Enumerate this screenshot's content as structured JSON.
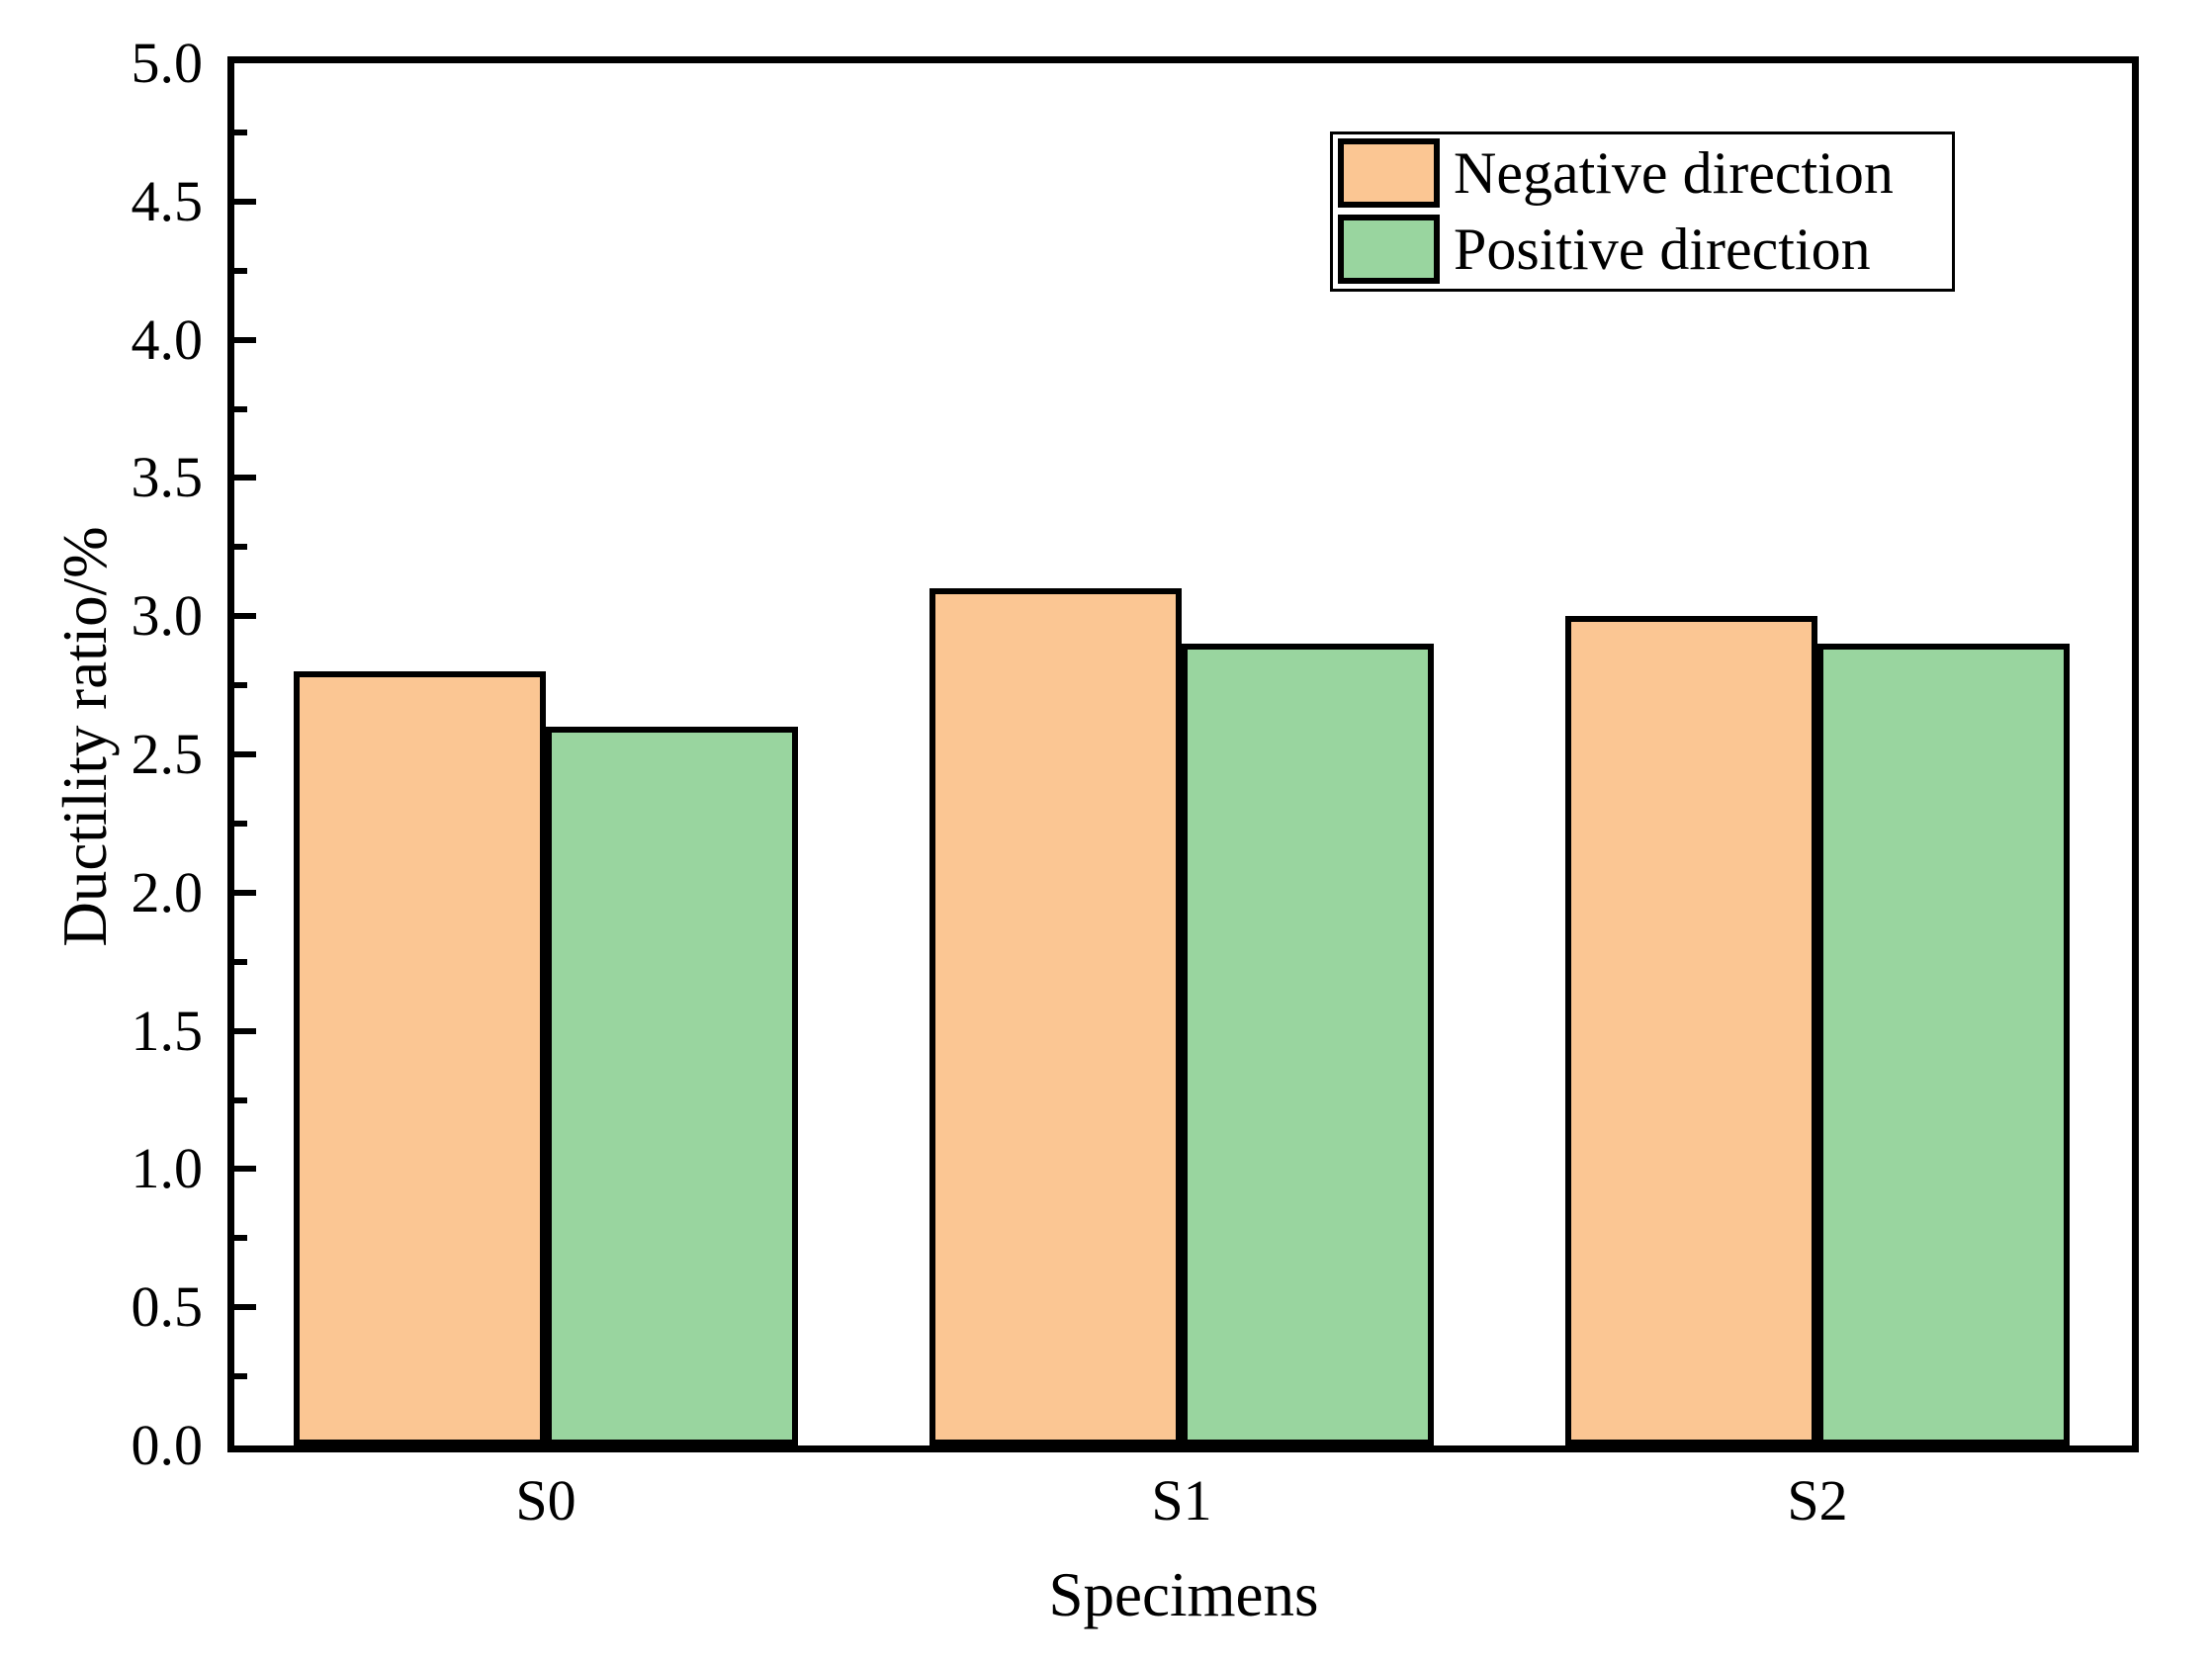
{
  "chart_data": {
    "type": "bar",
    "title": "",
    "xlabel": "Specimens",
    "ylabel": "Ductility ratio/%",
    "categories": [
      "S0",
      "S1",
      "S2"
    ],
    "series": [
      {
        "name": "Negative direction",
        "color": "#FBC693",
        "values": [
          2.8,
          3.1,
          3.0
        ]
      },
      {
        "name": "Positive direction",
        "color": "#99D59F",
        "values": [
          2.6,
          2.9,
          2.9
        ]
      }
    ],
    "ylim": [
      0,
      5
    ],
    "y_major_step": 0.5,
    "y_minor_step": 0.25,
    "y_tick_labels": [
      "0.0",
      "0.5",
      "1.0",
      "1.5",
      "2.0",
      "2.5",
      "3.0",
      "3.5",
      "4.0",
      "4.5",
      "5.0"
    ],
    "legend_position": "top-right",
    "grid": false,
    "bar_edge_color": "#000000",
    "axis_color": "#000000",
    "background": "#FFFFFF"
  }
}
